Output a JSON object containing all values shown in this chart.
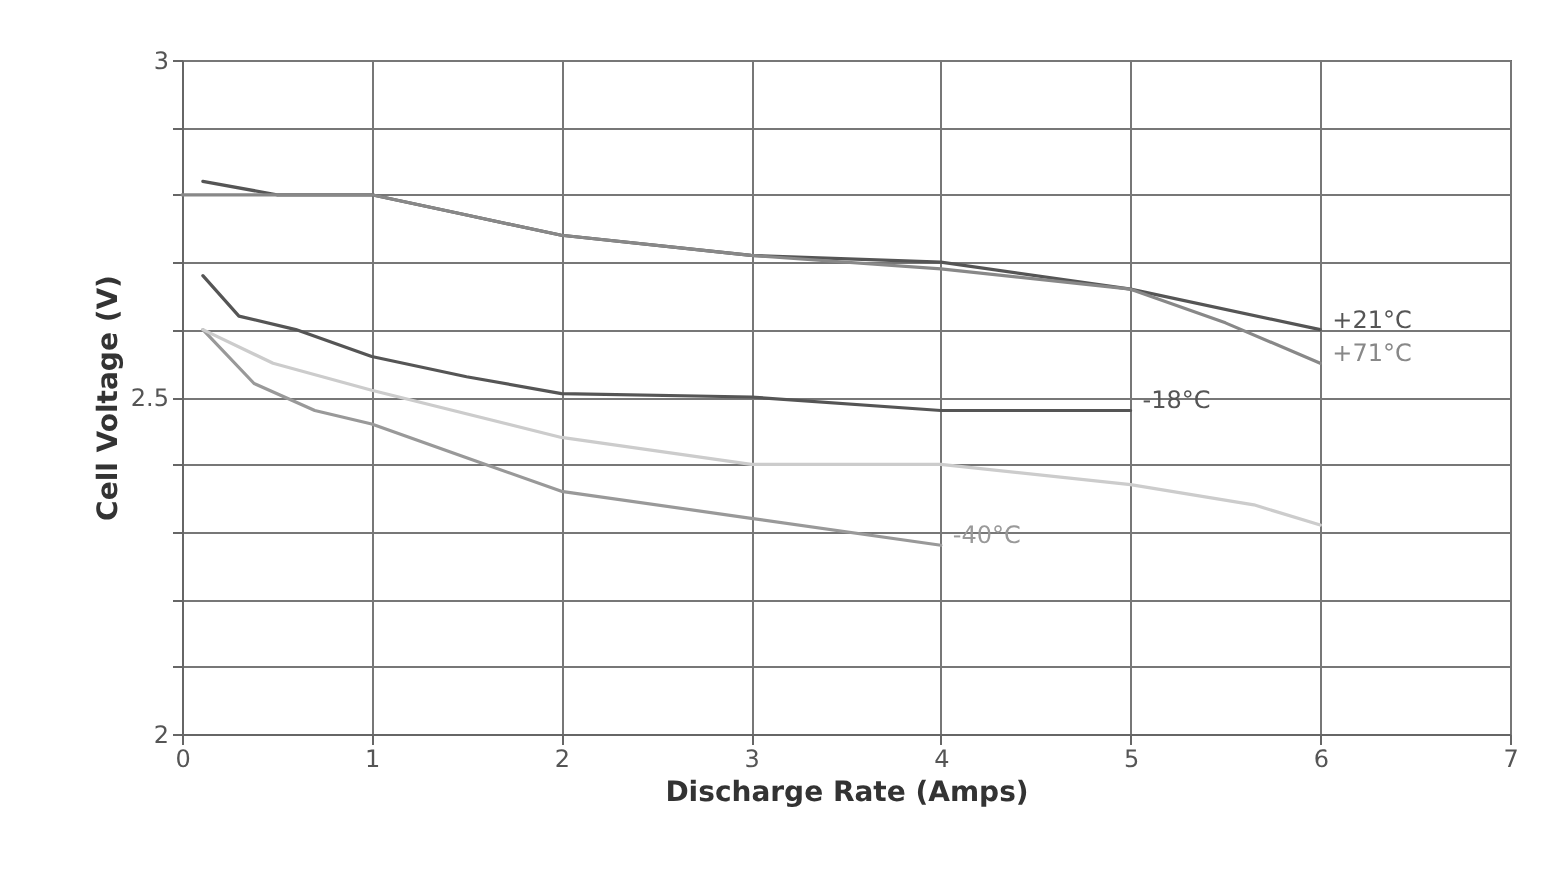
{
  "chart_data": {
    "type": "line",
    "xlabel": "Discharge Rate (Amps)",
    "ylabel": "Cell Voltage (V)",
    "xlim": [
      0,
      7
    ],
    "xticks": [
      0,
      1,
      2,
      3,
      4,
      5,
      6,
      7
    ],
    "ylim": [
      2,
      3
    ],
    "yticks": [
      2,
      {
        "value": 2.1,
        "label": null
      },
      {
        "value": 2.2,
        "label": null
      },
      {
        "value": 2.3,
        "label": null
      },
      {
        "value": 2.4,
        "label": null
      },
      2.5,
      {
        "value": 2.6,
        "label": null
      },
      {
        "value": 2.7,
        "label": null
      },
      {
        "value": 2.8,
        "label": null
      },
      {
        "value": 2.9,
        "label": null
      },
      3
    ],
    "grid": true,
    "legend": false,
    "marker": "none",
    "series": [
      {
        "name": "+21°C",
        "color": "#555555",
        "x": [
          0.11,
          0.5,
          1,
          1.5,
          2,
          3,
          4,
          5,
          6
        ],
        "values": [
          2.82,
          2.8,
          2.8,
          2.77,
          2.74,
          2.71,
          2.7,
          2.66,
          2.6
        ]
      },
      {
        "name": "+71°C",
        "color": "#888888",
        "x": [
          0,
          0.5,
          1,
          1.5,
          2,
          3,
          4,
          5,
          5.5,
          6
        ],
        "values": [
          2.8,
          2.8,
          2.8,
          2.77,
          2.74,
          2.71,
          2.69,
          2.66,
          2.61,
          2.55
        ]
      },
      {
        "name": "-18°C",
        "color": "#555555",
        "x": [
          0.11,
          0.3,
          0.6,
          1,
          1.5,
          2,
          3,
          4,
          5
        ],
        "values": [
          2.68,
          2.62,
          2.6,
          2.56,
          2.53,
          2.505,
          2.5,
          2.48,
          2.48
        ]
      },
      {
        "name": "-40°C",
        "color": "#999999",
        "x": [
          0.11,
          0.38,
          0.7,
          1,
          1.5,
          2,
          3,
          4
        ],
        "values": [
          2.6,
          2.52,
          2.48,
          2.46,
          2.41,
          2.36,
          2.32,
          2.28
        ]
      },
      {
        "color": "#cccccc",
        "x": [
          0.11,
          0.48,
          1,
          2,
          3,
          4,
          5,
          5.65,
          6
        ],
        "values": [
          2.6,
          2.55,
          2.51,
          2.44,
          2.4,
          2.4,
          2.37,
          2.34,
          2.31
        ]
      }
    ]
  }
}
